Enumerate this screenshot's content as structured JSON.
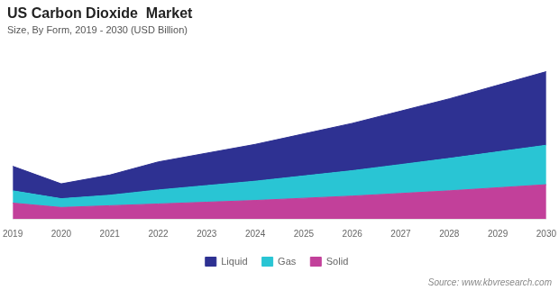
{
  "chart_data": {
    "type": "area",
    "stacked": true,
    "title": "US Carbon Dioxide  Market",
    "subtitle": "Size, By Form, 2019 - 2030 (USD Billion)",
    "source": "Source: www.kbvresearch.com",
    "x": [
      2019,
      2020,
      2021,
      2022,
      2023,
      2024,
      2025,
      2026,
      2027,
      2028,
      2029,
      2030
    ],
    "xlim": [
      2019,
      2030
    ],
    "xticks": [
      2019,
      2020,
      2021,
      2022,
      2023,
      2024,
      2025,
      2026,
      2027,
      2028,
      2029,
      2030
    ],
    "ylim": [
      0,
      20
    ],
    "yticks": [
      0,
      5,
      10,
      15,
      20
    ],
    "tick_labels": "x",
    "grid": false,
    "legend": "bottom",
    "series": [
      {
        "name": "Solid",
        "color": "#c2409a",
        "values": [
          1.8,
          1.3,
          1.5,
          1.7,
          1.9,
          2.1,
          2.35,
          2.6,
          2.9,
          3.2,
          3.55,
          3.9
        ]
      },
      {
        "name": "Gas",
        "color": "#29c5d4",
        "values": [
          1.4,
          1.0,
          1.2,
          1.6,
          1.9,
          2.2,
          2.55,
          2.9,
          3.3,
          3.7,
          4.1,
          4.5
        ]
      },
      {
        "name": "Liquid",
        "color": "#2e3192",
        "values": [
          2.8,
          1.7,
          2.3,
          3.2,
          3.7,
          4.2,
          4.8,
          5.4,
          6.1,
          6.8,
          7.6,
          8.4
        ]
      }
    ]
  }
}
